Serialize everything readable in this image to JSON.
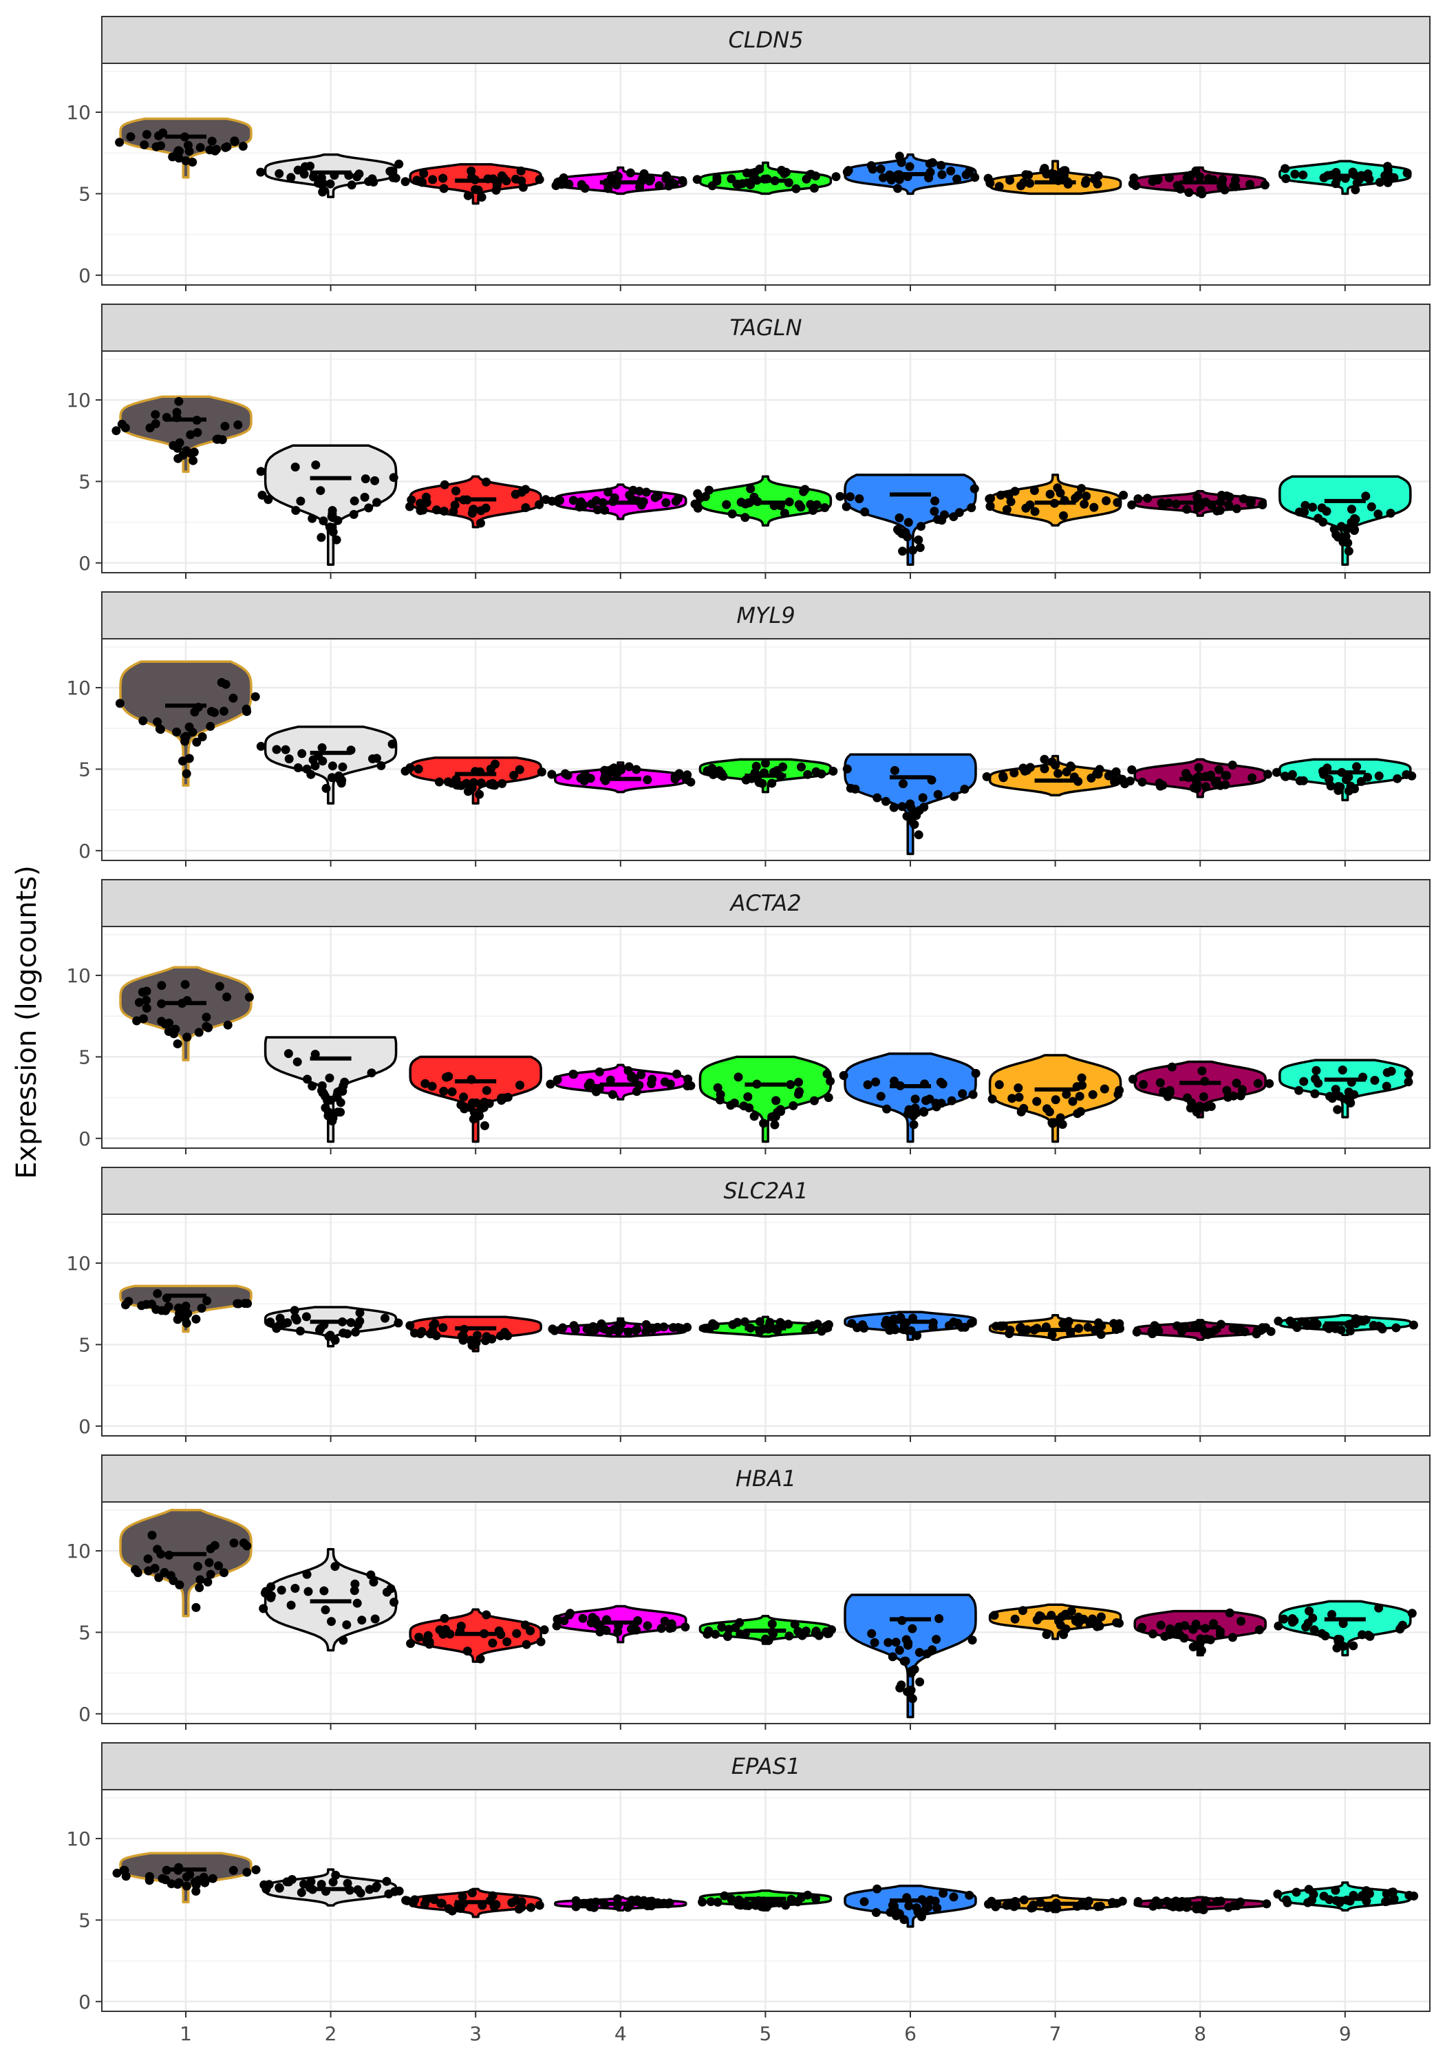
{
  "chart_data": {
    "type": "violin",
    "ylabel": "Expression (logcounts)",
    "x_categories": [
      "1",
      "2",
      "3",
      "4",
      "5",
      "6",
      "7",
      "8",
      "9"
    ],
    "y_ticks": [
      0,
      5,
      10
    ],
    "ylim": [
      -0.6,
      13
    ],
    "grid": true,
    "colors": {
      "fill": [
        "#5b5356",
        "#e5e5e5",
        "#ff2a2a",
        "#ff00ff",
        "#22ff22",
        "#3388ff",
        "#ffb020",
        "#a0005a",
        "#22ffcc"
      ],
      "outline": [
        "#d4a030",
        "#000000",
        "#000000",
        "#000000",
        "#000000",
        "#000000",
        "#000000",
        "#000000",
        "#000000"
      ],
      "strip_fill": "#d9d9d9",
      "point": "#000000"
    },
    "panels": [
      {
        "gene": "CLDN5",
        "groups": [
          {
            "min": 6.0,
            "max": 9.6,
            "median": 8.5,
            "mode": 8.7
          },
          {
            "min": 4.8,
            "max": 7.4,
            "median": 6.3,
            "mode": 6.4
          },
          {
            "min": 4.4,
            "max": 6.8,
            "median": 5.8,
            "mode": 6.0
          },
          {
            "min": 5.0,
            "max": 6.6,
            "median": 5.7,
            "mode": 5.7
          },
          {
            "min": 5.0,
            "max": 6.9,
            "median": 5.8,
            "mode": 5.8
          },
          {
            "min": 5.0,
            "max": 7.4,
            "median": 6.2,
            "mode": 6.2
          },
          {
            "min": 5.0,
            "max": 7.0,
            "median": 5.7,
            "mode": 5.6
          },
          {
            "min": 4.9,
            "max": 6.6,
            "median": 5.7,
            "mode": 5.7
          },
          {
            "min": 5.0,
            "max": 7.0,
            "median": 6.1,
            "mode": 6.2
          }
        ]
      },
      {
        "gene": "TAGLN",
        "groups": [
          {
            "min": 5.6,
            "max": 10.2,
            "median": 8.8,
            "mode": 8.8
          },
          {
            "min": -0.1,
            "max": 7.2,
            "median": 5.2,
            "mode": 5.3
          },
          {
            "min": 2.2,
            "max": 5.3,
            "median": 3.9,
            "mode": 3.9
          },
          {
            "min": 2.7,
            "max": 4.8,
            "median": 3.7,
            "mode": 3.8
          },
          {
            "min": 2.3,
            "max": 5.3,
            "median": 3.7,
            "mode": 3.8
          },
          {
            "min": -0.1,
            "max": 5.4,
            "median": 4.2,
            "mode": 4.3
          },
          {
            "min": 2.3,
            "max": 5.4,
            "median": 3.7,
            "mode": 3.7
          },
          {
            "min": 2.9,
            "max": 4.4,
            "median": 3.7,
            "mode": 3.7
          },
          {
            "min": -0.1,
            "max": 5.3,
            "median": 3.8,
            "mode": 4.2
          }
        ]
      },
      {
        "gene": "MYL9",
        "groups": [
          {
            "min": 4.0,
            "max": 11.6,
            "median": 8.9,
            "mode": 9.8
          },
          {
            "min": 2.9,
            "max": 7.6,
            "median": 6.0,
            "mode": 6.3
          },
          {
            "min": 2.9,
            "max": 5.7,
            "median": 4.7,
            "mode": 5.0
          },
          {
            "min": 3.6,
            "max": 5.4,
            "median": 4.4,
            "mode": 4.4
          },
          {
            "min": 3.6,
            "max": 5.6,
            "median": 4.6,
            "mode": 5.0
          },
          {
            "min": -0.2,
            "max": 5.9,
            "median": 4.5,
            "mode": 4.9
          },
          {
            "min": 3.4,
            "max": 5.8,
            "median": 4.3,
            "mode": 4.4
          },
          {
            "min": 3.3,
            "max": 5.6,
            "median": 4.4,
            "mode": 4.6
          },
          {
            "min": 3.1,
            "max": 5.6,
            "median": 4.8,
            "mode": 4.9
          }
        ]
      },
      {
        "gene": "ACTA2",
        "groups": [
          {
            "min": 4.8,
            "max": 10.5,
            "median": 8.3,
            "mode": 8.5
          },
          {
            "min": -0.2,
            "max": 6.2,
            "median": 4.9,
            "mode": 5.5
          },
          {
            "min": -0.2,
            "max": 5.0,
            "median": 3.5,
            "mode": 4.0
          },
          {
            "min": 2.4,
            "max": 4.5,
            "median": 3.3,
            "mode": 3.5
          },
          {
            "min": -0.2,
            "max": 5.0,
            "median": 3.3,
            "mode": 3.5
          },
          {
            "min": -0.2,
            "max": 5.2,
            "median": 3.2,
            "mode": 3.5
          },
          {
            "min": -0.2,
            "max": 5.1,
            "median": 3.0,
            "mode": 3.2
          },
          {
            "min": 1.3,
            "max": 4.7,
            "median": 3.4,
            "mode": 3.5
          },
          {
            "min": 1.3,
            "max": 4.8,
            "median": 3.6,
            "mode": 3.8
          }
        ]
      },
      {
        "gene": "SLC2A1",
        "groups": [
          {
            "min": 5.8,
            "max": 8.6,
            "median": 8.0,
            "mode": 8.0
          },
          {
            "min": 4.9,
            "max": 7.3,
            "median": 6.4,
            "mode": 6.5
          },
          {
            "min": 4.6,
            "max": 6.7,
            "median": 6.0,
            "mode": 6.1
          },
          {
            "min": 5.5,
            "max": 6.6,
            "median": 5.9,
            "mode": 5.9
          },
          {
            "min": 5.5,
            "max": 6.7,
            "median": 6.0,
            "mode": 6.0
          },
          {
            "min": 5.3,
            "max": 7.0,
            "median": 6.4,
            "mode": 6.4
          },
          {
            "min": 5.3,
            "max": 6.8,
            "median": 5.9,
            "mode": 6.0
          },
          {
            "min": 5.3,
            "max": 6.5,
            "median": 5.9,
            "mode": 5.9
          },
          {
            "min": 5.6,
            "max": 6.8,
            "median": 6.3,
            "mode": 6.3
          }
        ]
      },
      {
        "gene": "HBA1",
        "groups": [
          {
            "min": 6.0,
            "max": 12.5,
            "median": 9.8,
            "mode": 10.3
          },
          {
            "min": 3.9,
            "max": 10.1,
            "median": 6.9,
            "mode": 6.9
          },
          {
            "min": 3.2,
            "max": 6.4,
            "median": 4.9,
            "mode": 4.9
          },
          {
            "min": 4.4,
            "max": 6.6,
            "median": 5.6,
            "mode": 5.7
          },
          {
            "min": 4.3,
            "max": 6.0,
            "median": 5.1,
            "mode": 5.2
          },
          {
            "min": -0.2,
            "max": 7.3,
            "median": 5.8,
            "mode": 6.0
          },
          {
            "min": 4.6,
            "max": 6.7,
            "median": 5.9,
            "mode": 5.9
          },
          {
            "min": 3.6,
            "max": 6.3,
            "median": 5.3,
            "mode": 5.5
          },
          {
            "min": 3.6,
            "max": 6.9,
            "median": 5.8,
            "mode": 5.8
          }
        ]
      },
      {
        "gene": "EPAS1",
        "groups": [
          {
            "min": 6.1,
            "max": 9.1,
            "median": 8.1,
            "mode": 8.3
          },
          {
            "min": 5.9,
            "max": 8.1,
            "median": 6.9,
            "mode": 6.9
          },
          {
            "min": 5.2,
            "max": 6.9,
            "median": 6.1,
            "mode": 6.1
          },
          {
            "min": 5.6,
            "max": 6.4,
            "median": 6.0,
            "mode": 6.0
          },
          {
            "min": 5.6,
            "max": 6.8,
            "median": 6.3,
            "mode": 6.3
          },
          {
            "min": 4.6,
            "max": 7.1,
            "median": 6.2,
            "mode": 6.2
          },
          {
            "min": 5.5,
            "max": 6.5,
            "median": 6.0,
            "mode": 6.0
          },
          {
            "min": 5.5,
            "max": 6.4,
            "median": 6.0,
            "mode": 6.0
          },
          {
            "min": 5.6,
            "max": 7.3,
            "median": 6.3,
            "mode": 6.4
          }
        ]
      }
    ]
  }
}
